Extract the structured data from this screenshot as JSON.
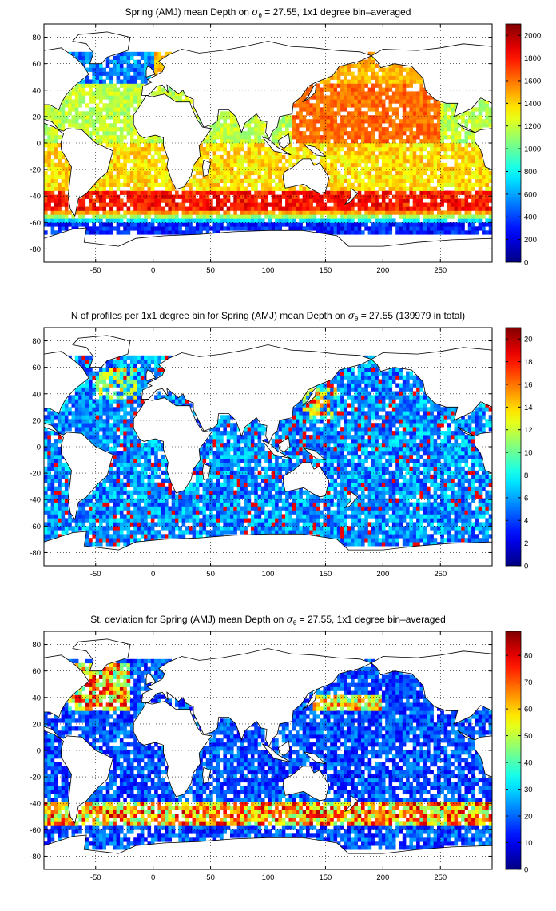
{
  "figure": {
    "background": "#ffffff"
  },
  "chart_data": [
    {
      "type": "heatmap",
      "title_parts": {
        "pre": "Spring (AMJ) mean Depth on ",
        "sigma": "σ",
        "sub": "θ",
        "post": " = 27.55, 1x1 degree bin–averaged"
      },
      "xlim": [
        -95,
        295
      ],
      "ylim": [
        -90,
        90
      ],
      "xticks": [
        -50,
        0,
        50,
        100,
        150,
        200,
        250
      ],
      "yticks": [
        80,
        60,
        40,
        20,
        0,
        -20,
        -40,
        -60,
        -80
      ],
      "grid": true,
      "colormap": "jet",
      "colorbar": {
        "min": 0,
        "max": 2100,
        "ticks": [
          0,
          200,
          400,
          600,
          800,
          1000,
          1200,
          1400,
          1600,
          1800,
          2000
        ]
      },
      "field_description": "Isopycnal depth (m): shallow (<400) in subpolar North Atlantic and Southern Ocean south of ~55S, deepest (1800-2000) near 40-45S band and North Pacific subtropical gyre"
    },
    {
      "type": "heatmap",
      "title_parts": {
        "pre": "N of profiles per 1x1 degree bin for Spring (AMJ) mean Depth on ",
        "sigma": "σ",
        "sub": "θ",
        "post": " = 27.55 (139979 in total)"
      },
      "xlim": [
        -95,
        295
      ],
      "ylim": [
        -90,
        90
      ],
      "xticks": [
        -50,
        0,
        50,
        100,
        150,
        200,
        250
      ],
      "yticks": [
        80,
        60,
        40,
        20,
        0,
        -20,
        -40,
        -60,
        -80
      ],
      "grid": true,
      "colormap": "jet",
      "colorbar": {
        "min": 0,
        "max": 21,
        "ticks": [
          0,
          2,
          4,
          6,
          8,
          10,
          12,
          14,
          16,
          18,
          20
        ]
      },
      "field_description": "Profile counts per bin: mostly 2-8, higher (15-20) near Kuroshio (~140E, 35N) and Gulf Stream/North Atlantic (~-40, 45N)"
    },
    {
      "type": "heatmap",
      "title_parts": {
        "pre": "St. deviation for Spring (AMJ) mean Depth on ",
        "sigma": "σ",
        "sub": "θ",
        "post": " = 27.55, 1x1 degree bin–averaged"
      },
      "xlim": [
        -95,
        295
      ],
      "ylim": [
        -90,
        90
      ],
      "xticks": [
        -50,
        0,
        50,
        100,
        150,
        200,
        250
      ],
      "yticks": [
        80,
        60,
        40,
        20,
        0,
        -20,
        -40,
        -60,
        -80
      ],
      "grid": true,
      "colormap": "jet",
      "colorbar": {
        "min": 0,
        "max": 89,
        "ticks": [
          0,
          10,
          20,
          30,
          40,
          50,
          60,
          70,
          80
        ]
      },
      "field_description": "Standard deviation (m): mostly 5-25, high (60-89) in Antarctic Circumpolar Current band 40-55S, Gulf Stream/North Atlantic and Kuroshio extension"
    }
  ]
}
